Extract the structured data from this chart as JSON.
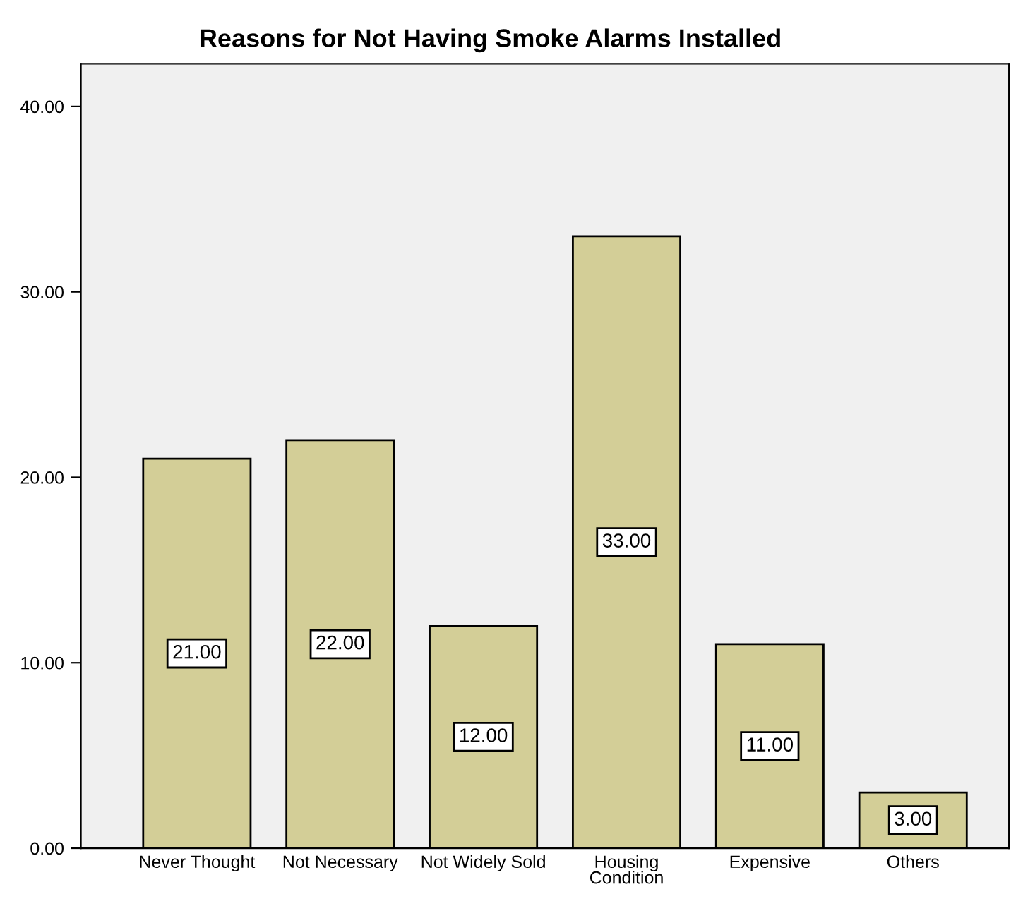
{
  "chart_data": {
    "type": "bar",
    "title": "Reasons for Not Having Smoke Alarms Installed",
    "categories": [
      "Never Thought",
      "Not Necessary",
      "Not Widely Sold",
      "Housing\nCondition",
      "Expensive",
      "Others"
    ],
    "values": [
      21,
      22,
      12,
      33,
      11,
      3
    ],
    "value_labels": [
      "21.00",
      "22.00",
      "12.00",
      "33.00",
      "11.00",
      "3.00"
    ],
    "color": "#d3ce97",
    "ylim": [
      0,
      42.3
    ],
    "yticks": [
      {
        "value": 0,
        "label": "0.00"
      },
      {
        "value": 10,
        "label": "10.00"
      },
      {
        "value": 20,
        "label": "20.00"
      },
      {
        "value": 30,
        "label": "30.00"
      },
      {
        "value": 40,
        "label": "40.00"
      }
    ],
    "grid": false
  }
}
